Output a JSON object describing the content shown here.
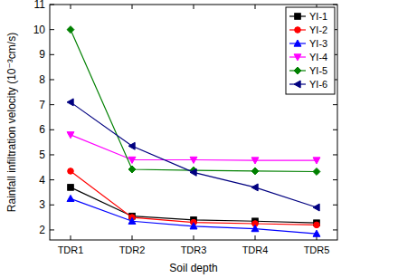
{
  "chart_data": {
    "type": "line",
    "x_label": "Soil depth",
    "y_label": "Rainfall infiltration velocity (10⁻³cm/s)",
    "categories": [
      "TDR1",
      "TDR2",
      "TDR3",
      "TDR4",
      "TDR5"
    ],
    "series": [
      {
        "name": "YI-1",
        "color": "#000000",
        "marker": "square",
        "values": [
          3.7,
          2.55,
          2.4,
          2.35,
          2.28
        ]
      },
      {
        "name": "YI-2",
        "color": "#ff0000",
        "marker": "circle",
        "values": [
          4.35,
          2.5,
          2.3,
          2.25,
          2.2
        ]
      },
      {
        "name": "YI-3",
        "color": "#0000ff",
        "marker": "triangle-up",
        "values": [
          3.25,
          2.35,
          2.15,
          2.05,
          1.85
        ]
      },
      {
        "name": "YI-4",
        "color": "#ff00ff",
        "marker": "triangle-down",
        "values": [
          5.8,
          4.8,
          4.8,
          4.78,
          4.78
        ]
      },
      {
        "name": "YI-5",
        "color": "#008000",
        "marker": "diamond",
        "values": [
          10.0,
          4.42,
          4.38,
          4.35,
          4.33
        ]
      },
      {
        "name": "YI-6",
        "color": "#000080",
        "marker": "triangle-left",
        "values": [
          7.1,
          5.35,
          4.3,
          3.7,
          2.9
        ]
      }
    ],
    "ylim": [
      1.6,
      11
    ],
    "yticks": [
      2,
      3,
      4,
      5,
      6,
      7,
      8,
      9,
      10,
      11
    ],
    "grid": false,
    "legend": "upper right"
  }
}
